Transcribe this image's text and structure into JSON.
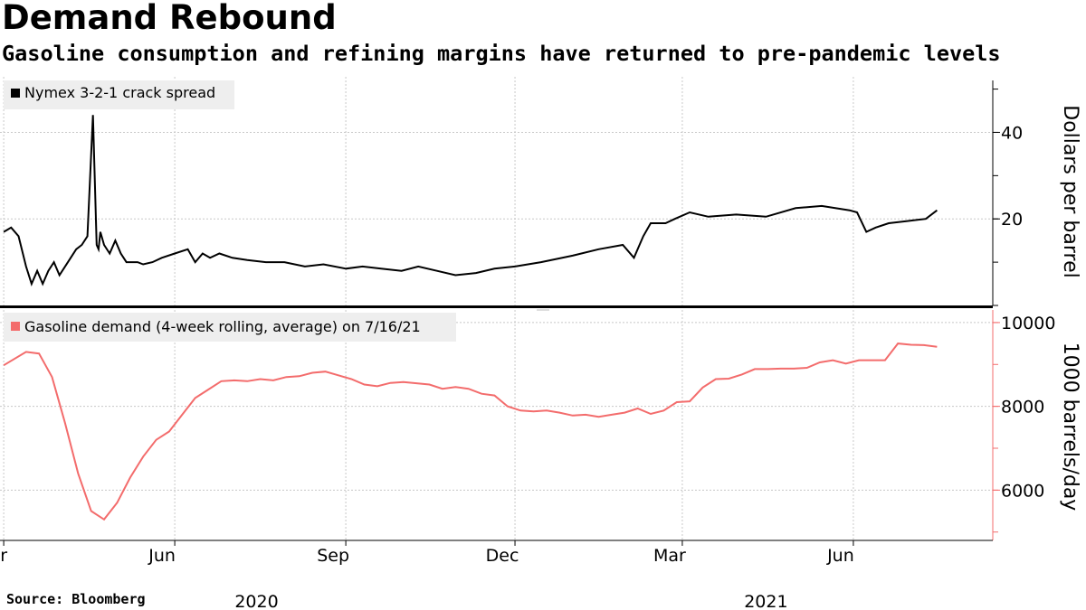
{
  "header": {
    "title": "Demand Rebound",
    "subtitle": "Gasoline consumption and refining margins have returned to pre-pandemic levels"
  },
  "footer": {
    "source": "Source: Bloomberg"
  },
  "chart_data": [
    {
      "type": "line",
      "legend": "Nymex 3-2-1 crack spread",
      "color": "#000000",
      "ylabel": "Dollars per barrel",
      "ylim": [
        0,
        52
      ],
      "yticks": [
        20,
        40
      ],
      "ytick_labels": [
        "20",
        "40"
      ],
      "x": [
        "2020-03-01",
        "2020-03-05",
        "2020-03-09",
        "2020-03-13",
        "2020-03-16",
        "2020-03-19",
        "2020-03-22",
        "2020-03-25",
        "2020-03-28",
        "2020-03-31",
        "2020-04-03",
        "2020-04-06",
        "2020-04-09",
        "2020-04-12",
        "2020-04-15",
        "2020-04-18",
        "2020-04-20",
        "2020-04-21",
        "2020-04-22",
        "2020-04-24",
        "2020-04-27",
        "2020-04-30",
        "2020-05-03",
        "2020-05-06",
        "2020-05-09",
        "2020-05-12",
        "2020-05-15",
        "2020-05-20",
        "2020-05-25",
        "2020-06-01",
        "2020-06-08",
        "2020-06-12",
        "2020-06-16",
        "2020-06-20",
        "2020-06-25",
        "2020-07-02",
        "2020-07-10",
        "2020-07-20",
        "2020-07-30",
        "2020-08-10",
        "2020-08-20",
        "2020-09-01",
        "2020-09-10",
        "2020-09-20",
        "2020-10-01",
        "2020-10-10",
        "2020-10-20",
        "2020-10-30",
        "2020-11-10",
        "2020-11-20",
        "2020-12-01",
        "2020-12-15",
        "2021-01-01",
        "2021-01-15",
        "2021-01-28",
        "2021-02-03",
        "2021-02-08",
        "2021-02-12",
        "2021-02-20",
        "2021-02-25",
        "2021-03-05",
        "2021-03-15",
        "2021-03-30",
        "2021-04-15",
        "2021-05-01",
        "2021-05-15",
        "2021-05-30",
        "2021-06-03",
        "2021-06-08",
        "2021-06-13",
        "2021-06-20",
        "2021-06-30",
        "2021-07-10",
        "2021-07-16"
      ],
      "values": [
        17,
        18,
        16,
        9,
        5,
        8,
        5,
        8,
        10,
        7,
        9,
        11,
        13,
        14,
        16,
        44,
        14,
        13,
        17,
        14,
        12,
        15,
        12,
        10,
        10,
        10,
        9.5,
        10,
        11,
        12,
        13,
        10,
        12,
        11,
        12,
        11,
        10.5,
        10,
        10,
        9,
        9.5,
        8.5,
        9,
        8.5,
        8,
        9,
        8,
        7,
        7.5,
        8.5,
        9,
        10,
        11.5,
        13,
        14,
        11,
        16,
        19,
        19,
        20,
        21.5,
        20.5,
        21,
        20.5,
        22.5,
        23,
        22,
        21.5,
        17,
        18,
        19,
        19.5,
        20,
        22
      ]
    },
    {
      "type": "line",
      "legend": "Gasoline demand (4-week rolling, average) on 7/16/21",
      "color": "#f36c6c",
      "ylabel": "1000 barrels/day",
      "ylim": [
        4800,
        10300
      ],
      "yticks": [
        6000,
        8000,
        10000
      ],
      "ytick_labels": [
        "6000",
        "8000",
        "10000"
      ],
      "x": [
        "2020-03-01",
        "2020-03-13",
        "2020-03-20",
        "2020-03-27",
        "2020-04-03",
        "2020-04-10",
        "2020-04-17",
        "2020-04-24",
        "2020-05-01",
        "2020-05-08",
        "2020-05-15",
        "2020-05-22",
        "2020-05-29",
        "2020-06-05",
        "2020-06-12",
        "2020-06-19",
        "2020-06-26",
        "2020-07-03",
        "2020-07-10",
        "2020-07-17",
        "2020-07-24",
        "2020-07-31",
        "2020-08-07",
        "2020-08-14",
        "2020-08-21",
        "2020-08-28",
        "2020-09-04",
        "2020-09-11",
        "2020-09-18",
        "2020-09-25",
        "2020-10-02",
        "2020-10-09",
        "2020-10-16",
        "2020-10-23",
        "2020-10-30",
        "2020-11-06",
        "2020-11-13",
        "2020-11-20",
        "2020-11-27",
        "2020-12-04",
        "2020-12-11",
        "2020-12-18",
        "2020-12-25",
        "2021-01-01",
        "2021-01-08",
        "2021-01-15",
        "2021-01-22",
        "2021-01-29",
        "2021-02-05",
        "2021-02-12",
        "2021-02-19",
        "2021-02-26",
        "2021-03-05",
        "2021-03-12",
        "2021-03-19",
        "2021-03-26",
        "2021-04-02",
        "2021-04-09",
        "2021-04-16",
        "2021-04-23",
        "2021-04-30",
        "2021-05-07",
        "2021-05-14",
        "2021-05-21",
        "2021-05-28",
        "2021-06-04",
        "2021-06-11",
        "2021-06-18",
        "2021-06-25",
        "2021-07-02",
        "2021-07-09",
        "2021-07-16"
      ],
      "values": [
        8980,
        9300,
        9260,
        8700,
        7600,
        6400,
        5500,
        5300,
        5700,
        6300,
        6800,
        7200,
        7400,
        7800,
        8200,
        8400,
        8600,
        8620,
        8600,
        8650,
        8620,
        8700,
        8720,
        8800,
        8830,
        8740,
        8650,
        8520,
        8480,
        8560,
        8580,
        8550,
        8520,
        8420,
        8460,
        8420,
        8300,
        8260,
        8000,
        7900,
        7880,
        7900,
        7850,
        7780,
        7800,
        7750,
        7800,
        7850,
        7950,
        7820,
        7900,
        8100,
        8120,
        8450,
        8650,
        8660,
        8760,
        8890,
        8890,
        8900,
        8900,
        8920,
        9050,
        9100,
        9020,
        9100,
        9100,
        9100,
        9500,
        9470,
        9460,
        9420
      ]
    }
  ],
  "x_axis": {
    "month_ticks": [
      {
        "date": "2020-03-01",
        "label": "Mar"
      },
      {
        "date": "2020-06-01",
        "label": "Jun"
      },
      {
        "date": "2020-09-01",
        "label": "Sep"
      },
      {
        "date": "2020-12-01",
        "label": "Dec"
      },
      {
        "date": "2021-03-01",
        "label": "Mar"
      },
      {
        "date": "2021-06-01",
        "label": "Jun"
      }
    ],
    "year_labels": [
      {
        "date": "2020-07-15",
        "label": "2020"
      },
      {
        "date": "2021-04-15",
        "label": "2021"
      }
    ],
    "range": [
      "2020-02-28",
      "2021-08-15"
    ]
  }
}
